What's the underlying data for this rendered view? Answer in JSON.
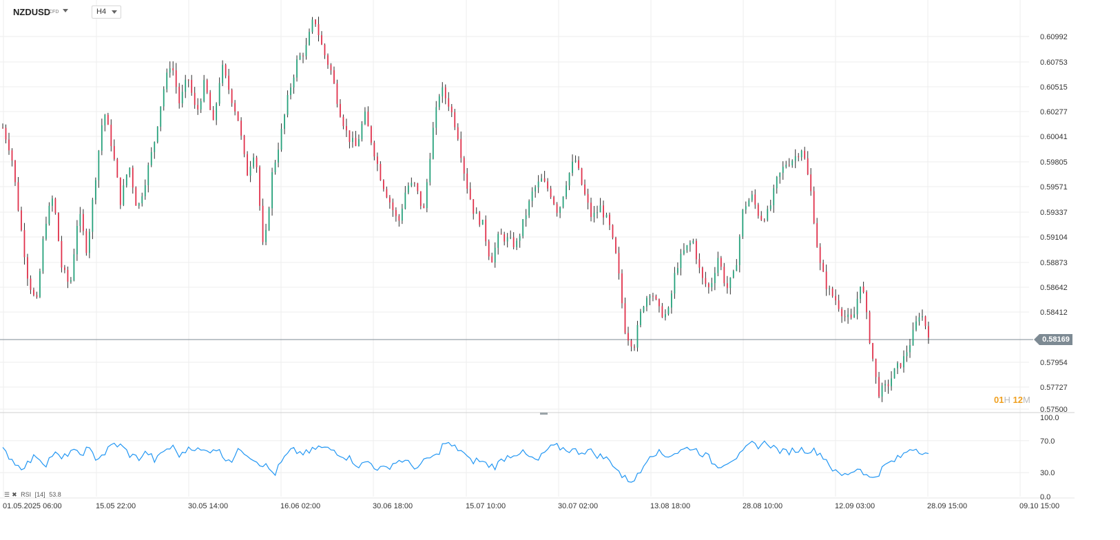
{
  "toolbar": {
    "symbol": "NZDUSD",
    "symbol_type": "CFD",
    "timeframe": "H4"
  },
  "colors": {
    "bull": "#26a17b",
    "bear": "#e0314b",
    "rsi_line": "#2196f3",
    "price_line": "#7d8a93",
    "grid": "#eeeeee"
  },
  "icons": [
    "symbol-caret-icon",
    "timeframe-caret-icon",
    "settings-icon",
    "close-icon",
    "price-tag-arrow-icon"
  ],
  "current_price": "0.58169",
  "countdown": {
    "hours": "01",
    "h_unit": "H",
    "minutes": "12",
    "m_unit": "M"
  },
  "rsi_legend": {
    "name": "RSI",
    "period": "[14]",
    "value": "53.8"
  },
  "chart_data": [
    {
      "type": "candlestick",
      "symbol": "NZDUSD",
      "timeframe": "H4",
      "y_ticks": [
        "0.60992",
        "0.60753",
        "0.60515",
        "0.60277",
        "0.60041",
        "0.59805",
        "0.59571",
        "0.59337",
        "0.59104",
        "0.58873",
        "0.58642",
        "0.58412",
        "0.57954",
        "0.57727",
        "0.57500"
      ],
      "ylim": [
        0.575,
        0.611
      ],
      "x_labels": [
        "01.05.2025  06:00",
        "15.05  22:00",
        "30.05  14:00",
        "16.06  02:00",
        "30.06  18:00",
        "15.07  10:00",
        "30.07  02:00",
        "13.08  18:00",
        "28.08  10:00",
        "12.09  03:00",
        "28.09  15:00",
        "09.10  15:00"
      ],
      "current_price": 0.58169,
      "grid": true,
      "anchors": [
        0.6008,
        0.5985,
        0.5925,
        0.587,
        0.5845,
        0.592,
        0.5945,
        0.588,
        0.5862,
        0.5932,
        0.5895,
        0.5962,
        0.6025,
        0.599,
        0.594,
        0.5975,
        0.5932,
        0.5962,
        0.5995,
        0.604,
        0.607,
        0.603,
        0.6055,
        0.602,
        0.605,
        0.601,
        0.6065,
        0.604,
        0.6015,
        0.5965,
        0.599,
        0.589,
        0.5965,
        0.6,
        0.604,
        0.607,
        0.608,
        0.611,
        0.608,
        0.606,
        0.6025,
        0.6,
        0.599,
        0.602,
        0.599,
        0.596,
        0.594,
        0.592,
        0.5955,
        0.5955,
        0.593,
        0.6,
        0.6045,
        0.603,
        0.6005,
        0.596,
        0.593,
        0.592,
        0.5885,
        0.591,
        0.5905,
        0.59,
        0.5925,
        0.595,
        0.596,
        0.595,
        0.593,
        0.596,
        0.598,
        0.595,
        0.5925,
        0.5935,
        0.592,
        0.5885,
        0.582,
        0.5808,
        0.5845,
        0.586,
        0.584,
        0.5835,
        0.588,
        0.5895,
        0.5905,
        0.587,
        0.586,
        0.589,
        0.586,
        0.5875,
        0.5935,
        0.5945,
        0.5925,
        0.593,
        0.596,
        0.5975,
        0.598,
        0.599,
        0.595,
        0.5885,
        0.586,
        0.585,
        0.5835,
        0.583,
        0.587,
        0.5815,
        0.5765,
        0.577,
        0.5785,
        0.5795,
        0.5815,
        0.584,
        0.582
      ],
      "rsi": {
        "name": "RSI",
        "period": 14,
        "last": 53.8,
        "y_ticks": [
          "100.0",
          "70.0",
          "30.0",
          "0.0"
        ],
        "ylim": [
          0,
          100
        ],
        "anchors": [
          58,
          48,
          36,
          42,
          52,
          40,
          55,
          46,
          58,
          52,
          60,
          48,
          54,
          66,
          63,
          52,
          48,
          56,
          44,
          58,
          62,
          50,
          64,
          58,
          56,
          62,
          50,
          46,
          60,
          52,
          44,
          38,
          28,
          46,
          58,
          55,
          54,
          62,
          60,
          58,
          52,
          47,
          38,
          44,
          36,
          34,
          42,
          46,
          40,
          36,
          48,
          50,
          68,
          62,
          58,
          44,
          46,
          40,
          38,
          48,
          53,
          56,
          49,
          44,
          58,
          63,
          60,
          58,
          56,
          58,
          52,
          48,
          40,
          24,
          20,
          28,
          52,
          56,
          51,
          54,
          58,
          62,
          56,
          50,
          38,
          42,
          48,
          52,
          66,
          64,
          68,
          60,
          55,
          58,
          59,
          58,
          56,
          46,
          30,
          26,
          32,
          36,
          22,
          28,
          40,
          45,
          52,
          62,
          58,
          53.8
        ]
      }
    }
  ]
}
